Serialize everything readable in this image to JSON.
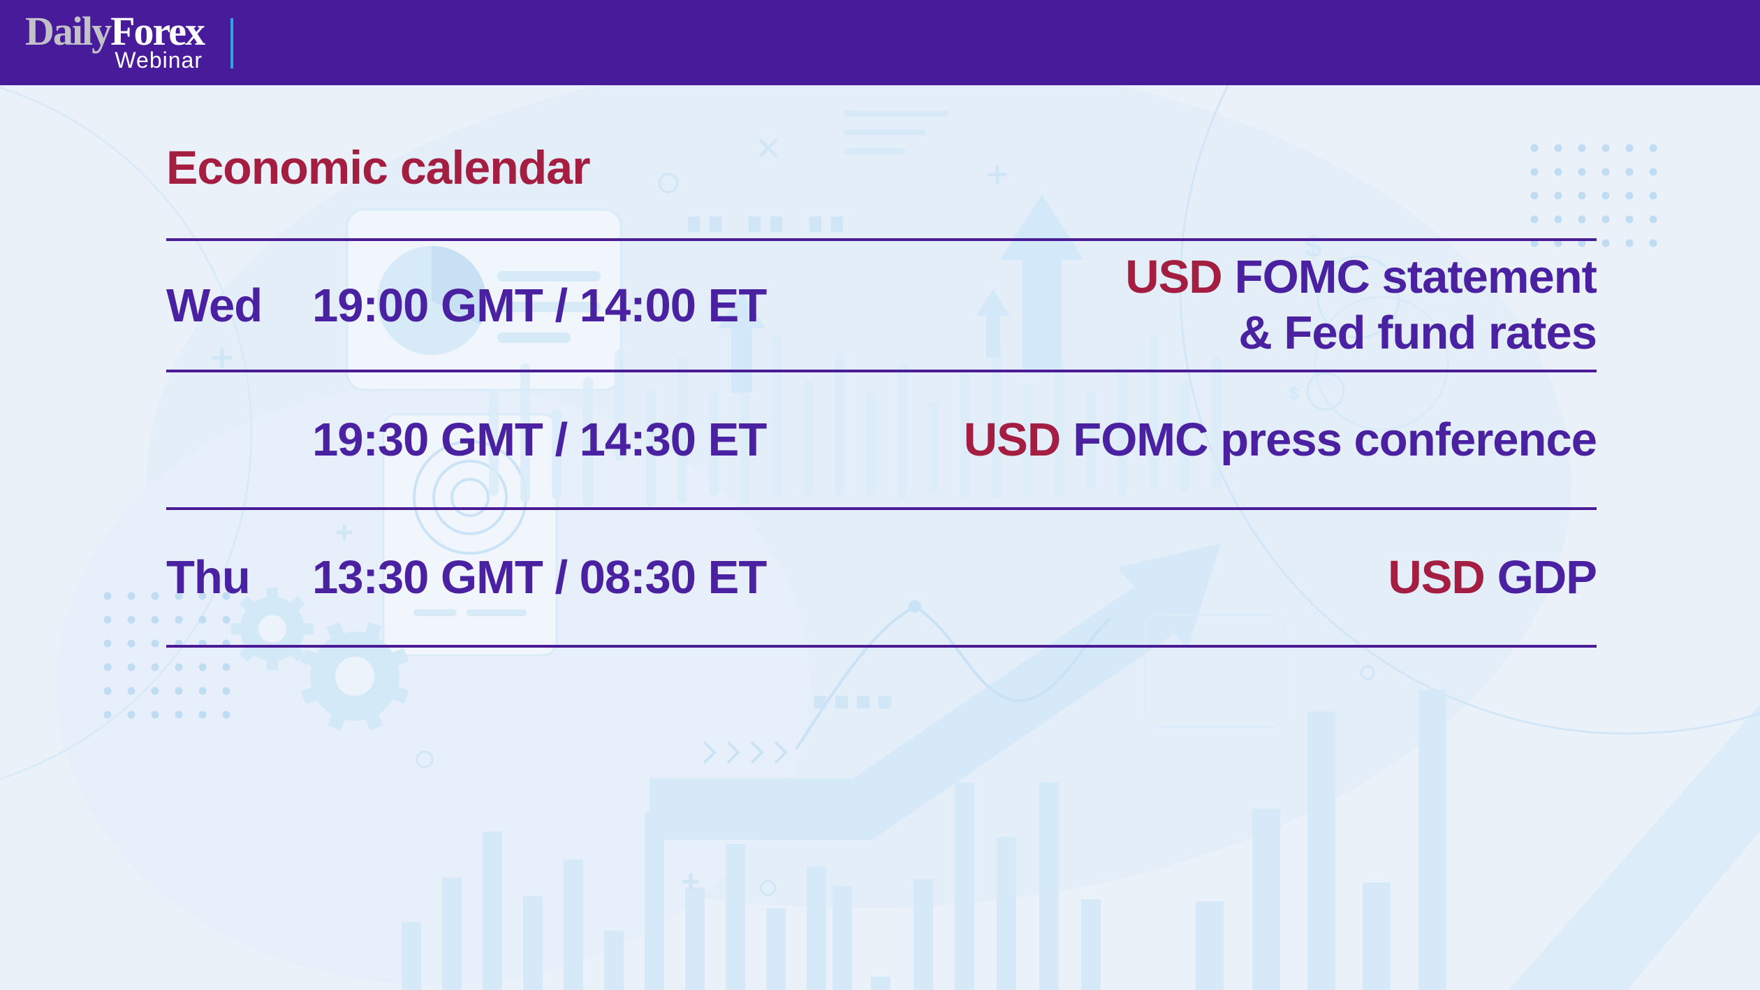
{
  "header": {
    "logo": {
      "daily": "Daily",
      "forex": "Forex",
      "webinar": "Webinar"
    }
  },
  "title": "Economic calendar",
  "calendar": {
    "rows": [
      {
        "day": "Wed",
        "time": "19:00 GMT / 14:00 ET",
        "currency": "USD",
        "event_line1": "FOMC statement",
        "event_line2": "& Fed fund rates"
      },
      {
        "day": "",
        "time": "19:30 GMT / 14:30 ET",
        "currency": "USD",
        "event_line1": "FOMC press conference"
      },
      {
        "day": "Thu",
        "time": "13:30 GMT / 08:30 ET",
        "currency": "USD",
        "event_line1": "GDP"
      }
    ]
  },
  "colors": {
    "header_bar": "#481b9a",
    "separator_cyan": "#2aa9e0",
    "accent_red": "#a41e41",
    "text_purple": "#4a21a0",
    "rule_purple": "#4a1d96",
    "background": "#eaf1f9",
    "illustration_blue": "#d8eaf8"
  }
}
